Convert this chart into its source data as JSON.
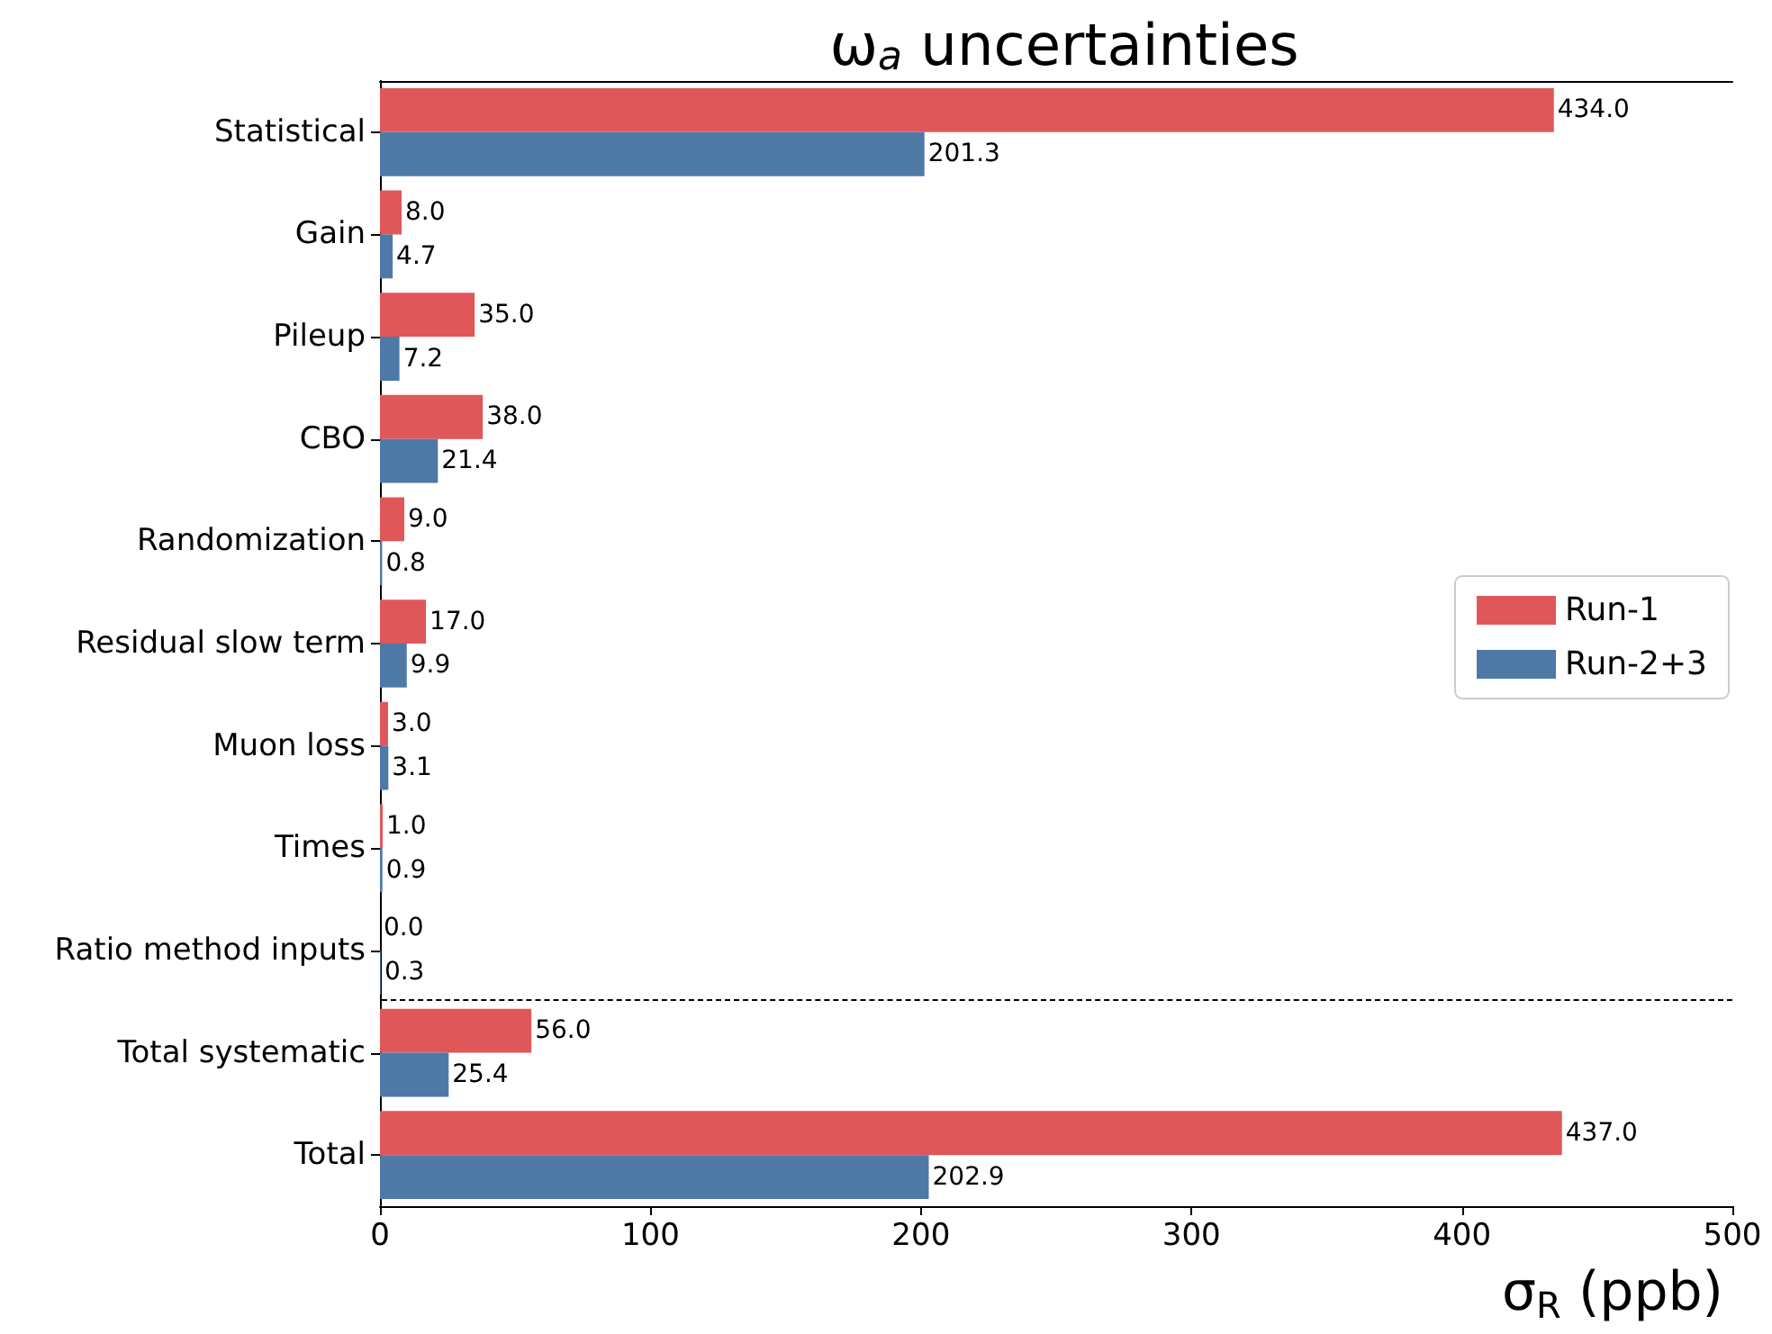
{
  "chart_data": {
    "type": "bar",
    "orientation": "horizontal",
    "title": "ω$_{a}$ uncertainties",
    "xlabel": "σ$_{R}$ (ppb)",
    "categories": [
      "Statistical",
      "Gain",
      "Pileup",
      "CBO",
      "Randomization",
      "Residual slow term",
      "Muon loss",
      "Times",
      "Ratio method inputs",
      "Total systematic",
      "Total"
    ],
    "series": [
      {
        "name": "Run-1",
        "color": "#e05759",
        "values": [
          434.0,
          8.0,
          35.0,
          38.0,
          9.0,
          17.0,
          3.0,
          1.0,
          0.0,
          56.0,
          437.0
        ],
        "value_labels": [
          "434.0",
          "8.0",
          "35.0",
          "38.0",
          "9.0",
          "17.0",
          "3.0",
          "1.0",
          "0.0",
          "56.0",
          "437.0"
        ]
      },
      {
        "name": "Run-2+3",
        "color": "#4e79a7",
        "values": [
          201.3,
          4.7,
          7.2,
          21.4,
          0.8,
          9.9,
          3.1,
          0.9,
          0.3,
          25.4,
          202.9
        ],
        "value_labels": [
          "201.3",
          "4.7",
          "7.2",
          "21.4",
          "0.8",
          "9.9",
          "3.1",
          "0.9",
          "0.3",
          "25.4",
          "202.9"
        ]
      }
    ],
    "xlim": [
      0,
      500
    ],
    "xticks": [
      0,
      100,
      200,
      300,
      400,
      500
    ],
    "grid": false,
    "legend": "right"
  }
}
